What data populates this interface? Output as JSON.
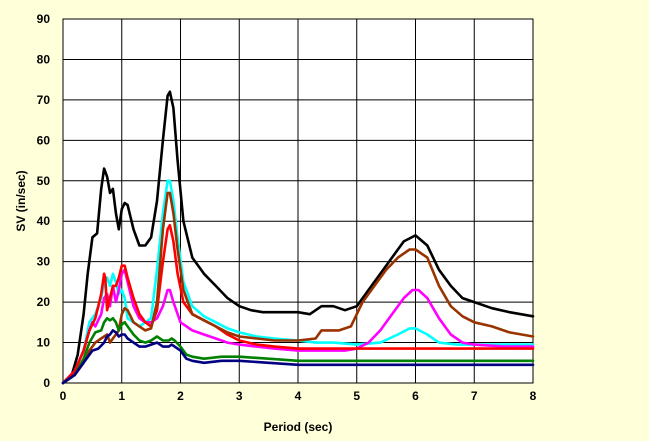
{
  "chart_data": {
    "type": "line",
    "title": "",
    "xlabel": "Period (sec)",
    "ylabel": "SV (in/sec)",
    "xlim": [
      0,
      8
    ],
    "ylim": [
      0,
      90
    ],
    "xticks": [
      0,
      1,
      2,
      3,
      4,
      5,
      6,
      7,
      8
    ],
    "yticks": [
      0,
      10,
      20,
      30,
      40,
      50,
      60,
      70,
      80,
      90
    ],
    "grid": true,
    "legend": "none",
    "colors": {
      "background": "#FFFFD9",
      "plot_background": "#FFFFFF",
      "grid": "#000000"
    },
    "series": [
      {
        "color": "#000000",
        "points": [
          [
            0,
            0
          ],
          [
            0.15,
            2
          ],
          [
            0.25,
            7
          ],
          [
            0.35,
            17
          ],
          [
            0.42,
            27
          ],
          [
            0.5,
            36
          ],
          [
            0.58,
            37
          ],
          [
            0.65,
            48
          ],
          [
            0.7,
            53
          ],
          [
            0.75,
            51
          ],
          [
            0.8,
            47
          ],
          [
            0.85,
            48
          ],
          [
            0.9,
            42
          ],
          [
            0.95,
            38
          ],
          [
            1.0,
            43
          ],
          [
            1.05,
            44.5
          ],
          [
            1.1,
            44
          ],
          [
            1.2,
            38
          ],
          [
            1.3,
            34
          ],
          [
            1.4,
            34
          ],
          [
            1.5,
            36
          ],
          [
            1.6,
            45
          ],
          [
            1.7,
            60
          ],
          [
            1.78,
            71
          ],
          [
            1.82,
            72
          ],
          [
            1.88,
            68
          ],
          [
            1.95,
            55
          ],
          [
            2.05,
            40
          ],
          [
            2.2,
            31
          ],
          [
            2.4,
            27
          ],
          [
            2.6,
            24
          ],
          [
            2.8,
            21
          ],
          [
            3.0,
            19
          ],
          [
            3.2,
            18
          ],
          [
            3.4,
            17.5
          ],
          [
            3.6,
            17.5
          ],
          [
            3.8,
            17.5
          ],
          [
            4.0,
            17.5
          ],
          [
            4.2,
            17
          ],
          [
            4.4,
            19
          ],
          [
            4.6,
            19
          ],
          [
            4.8,
            18
          ],
          [
            5.0,
            19
          ],
          [
            5.2,
            23
          ],
          [
            5.4,
            27
          ],
          [
            5.6,
            31
          ],
          [
            5.8,
            35
          ],
          [
            6.0,
            36.5
          ],
          [
            6.2,
            34
          ],
          [
            6.4,
            28
          ],
          [
            6.6,
            24
          ],
          [
            6.8,
            21
          ],
          [
            7.0,
            20
          ],
          [
            7.3,
            18.5
          ],
          [
            7.6,
            17.5
          ],
          [
            8.0,
            16.5
          ]
        ]
      },
      {
        "color": "#00FFFF",
        "points": [
          [
            0,
            0
          ],
          [
            0.2,
            3
          ],
          [
            0.35,
            8
          ],
          [
            0.45,
            15
          ],
          [
            0.55,
            17
          ],
          [
            0.65,
            21
          ],
          [
            0.7,
            25
          ],
          [
            0.75,
            26
          ],
          [
            0.8,
            24
          ],
          [
            0.85,
            27
          ],
          [
            0.9,
            25
          ],
          [
            0.95,
            22
          ],
          [
            1.0,
            23
          ],
          [
            1.05,
            21
          ],
          [
            1.1,
            16
          ],
          [
            1.2,
            15
          ],
          [
            1.3,
            14
          ],
          [
            1.4,
            15
          ],
          [
            1.5,
            16
          ],
          [
            1.6,
            28
          ],
          [
            1.7,
            42
          ],
          [
            1.78,
            50
          ],
          [
            1.82,
            50
          ],
          [
            1.88,
            45
          ],
          [
            1.95,
            36
          ],
          [
            2.05,
            25
          ],
          [
            2.2,
            19
          ],
          [
            2.4,
            16.5
          ],
          [
            2.6,
            15
          ],
          [
            2.8,
            13.5
          ],
          [
            3.0,
            12.5
          ],
          [
            3.3,
            11.5
          ],
          [
            3.6,
            11
          ],
          [
            4.0,
            10.5
          ],
          [
            4.3,
            10
          ],
          [
            4.6,
            10
          ],
          [
            5.0,
            9.5
          ],
          [
            5.4,
            10
          ],
          [
            5.7,
            12
          ],
          [
            5.9,
            13.5
          ],
          [
            6.0,
            13.5
          ],
          [
            6.2,
            12
          ],
          [
            6.4,
            10
          ],
          [
            6.7,
            9.5
          ],
          [
            7.0,
            9.5
          ],
          [
            7.5,
            9.5
          ],
          [
            8.0,
            9.5
          ]
        ]
      },
      {
        "color": "#FF00FF",
        "points": [
          [
            0,
            0
          ],
          [
            0.2,
            3
          ],
          [
            0.35,
            8
          ],
          [
            0.45,
            13
          ],
          [
            0.5,
            15
          ],
          [
            0.55,
            14
          ],
          [
            0.65,
            17
          ],
          [
            0.7,
            21
          ],
          [
            0.75,
            22
          ],
          [
            0.8,
            19
          ],
          [
            0.85,
            24
          ],
          [
            0.9,
            20
          ],
          [
            0.95,
            23
          ],
          [
            1.0,
            27
          ],
          [
            1.05,
            28
          ],
          [
            1.1,
            25
          ],
          [
            1.2,
            19
          ],
          [
            1.3,
            16
          ],
          [
            1.4,
            15
          ],
          [
            1.5,
            15
          ],
          [
            1.6,
            16
          ],
          [
            1.7,
            19
          ],
          [
            1.78,
            23
          ],
          [
            1.82,
            23
          ],
          [
            1.88,
            20
          ],
          [
            2.0,
            15
          ],
          [
            2.2,
            13
          ],
          [
            2.4,
            12
          ],
          [
            2.6,
            11
          ],
          [
            2.8,
            10
          ],
          [
            3.0,
            9.5
          ],
          [
            3.3,
            9
          ],
          [
            3.6,
            8.5
          ],
          [
            4.0,
            8
          ],
          [
            4.4,
            8
          ],
          [
            4.8,
            8
          ],
          [
            5.0,
            8.5
          ],
          [
            5.2,
            10
          ],
          [
            5.4,
            13
          ],
          [
            5.6,
            17
          ],
          [
            5.8,
            21
          ],
          [
            5.95,
            23
          ],
          [
            6.05,
            23
          ],
          [
            6.2,
            21
          ],
          [
            6.4,
            16
          ],
          [
            6.6,
            12
          ],
          [
            6.8,
            10
          ],
          [
            7.0,
            9.5
          ],
          [
            7.5,
            9
          ],
          [
            8.0,
            9
          ]
        ]
      },
      {
        "color": "#FF0000",
        "points": [
          [
            0,
            0
          ],
          [
            0.2,
            3
          ],
          [
            0.35,
            8
          ],
          [
            0.45,
            13
          ],
          [
            0.55,
            16
          ],
          [
            0.6,
            19
          ],
          [
            0.65,
            22
          ],
          [
            0.7,
            27
          ],
          [
            0.72,
            26
          ],
          [
            0.75,
            18
          ],
          [
            0.8,
            21
          ],
          [
            0.85,
            24
          ],
          [
            0.9,
            24
          ],
          [
            0.95,
            26
          ],
          [
            1.0,
            29
          ],
          [
            1.05,
            29
          ],
          [
            1.1,
            26
          ],
          [
            1.2,
            21
          ],
          [
            1.3,
            17
          ],
          [
            1.4,
            15
          ],
          [
            1.5,
            14
          ],
          [
            1.6,
            18
          ],
          [
            1.7,
            30
          ],
          [
            1.78,
            38
          ],
          [
            1.82,
            39
          ],
          [
            1.88,
            35
          ],
          [
            1.95,
            27
          ],
          [
            2.05,
            20
          ],
          [
            2.2,
            17
          ],
          [
            2.4,
            15.5
          ],
          [
            2.6,
            14
          ],
          [
            2.8,
            12
          ],
          [
            3.0,
            10.5
          ],
          [
            3.3,
            9.5
          ],
          [
            3.6,
            9
          ],
          [
            4.0,
            8.5
          ],
          [
            4.5,
            8.5
          ],
          [
            5.0,
            8.5
          ],
          [
            5.5,
            8.5
          ],
          [
            6.0,
            8.5
          ],
          [
            6.5,
            8.5
          ],
          [
            7.0,
            8.5
          ],
          [
            7.5,
            8.5
          ],
          [
            8.0,
            8.5
          ]
        ]
      },
      {
        "color": "#993300",
        "points": [
          [
            0,
            0
          ],
          [
            0.2,
            2
          ],
          [
            0.35,
            5
          ],
          [
            0.45,
            8
          ],
          [
            0.55,
            10
          ],
          [
            0.65,
            11
          ],
          [
            0.75,
            12
          ],
          [
            0.8,
            10
          ],
          [
            0.85,
            11
          ],
          [
            0.9,
            12
          ],
          [
            0.95,
            13
          ],
          [
            1.0,
            17
          ],
          [
            1.05,
            18.5
          ],
          [
            1.1,
            18
          ],
          [
            1.2,
            15
          ],
          [
            1.3,
            14
          ],
          [
            1.4,
            13
          ],
          [
            1.5,
            13.5
          ],
          [
            1.6,
            20
          ],
          [
            1.7,
            38
          ],
          [
            1.78,
            47
          ],
          [
            1.82,
            47
          ],
          [
            1.88,
            42
          ],
          [
            1.95,
            33
          ],
          [
            2.05,
            23
          ],
          [
            2.2,
            17
          ],
          [
            2.4,
            15.5
          ],
          [
            2.6,
            14
          ],
          [
            2.8,
            12.5
          ],
          [
            3.0,
            11.5
          ],
          [
            3.3,
            11
          ],
          [
            3.6,
            10.5
          ],
          [
            4.0,
            10.5
          ],
          [
            4.3,
            11
          ],
          [
            4.4,
            13
          ],
          [
            4.7,
            13
          ],
          [
            4.9,
            14
          ],
          [
            5.1,
            20
          ],
          [
            5.3,
            24
          ],
          [
            5.5,
            28
          ],
          [
            5.7,
            31
          ],
          [
            5.9,
            33
          ],
          [
            6.0,
            33
          ],
          [
            6.2,
            31
          ],
          [
            6.4,
            24
          ],
          [
            6.6,
            19
          ],
          [
            6.8,
            16.5
          ],
          [
            7.0,
            15
          ],
          [
            7.3,
            14
          ],
          [
            7.6,
            12.5
          ],
          [
            8.0,
            11.5
          ]
        ]
      },
      {
        "color": "#008000",
        "points": [
          [
            0,
            0
          ],
          [
            0.2,
            2
          ],
          [
            0.35,
            6
          ],
          [
            0.45,
            10
          ],
          [
            0.55,
            12.5
          ],
          [
            0.65,
            13
          ],
          [
            0.7,
            15
          ],
          [
            0.75,
            16
          ],
          [
            0.8,
            15.5
          ],
          [
            0.85,
            16
          ],
          [
            0.9,
            15
          ],
          [
            0.95,
            13
          ],
          [
            1.0,
            14.5
          ],
          [
            1.05,
            15
          ],
          [
            1.1,
            14
          ],
          [
            1.2,
            12
          ],
          [
            1.3,
            10.5
          ],
          [
            1.4,
            10
          ],
          [
            1.5,
            10.5
          ],
          [
            1.6,
            11.5
          ],
          [
            1.7,
            10.5
          ],
          [
            1.8,
            10.5
          ],
          [
            1.85,
            11
          ],
          [
            1.9,
            10.5
          ],
          [
            2.0,
            9
          ],
          [
            2.1,
            7
          ],
          [
            2.2,
            6.5
          ],
          [
            2.4,
            6
          ],
          [
            2.7,
            6.5
          ],
          [
            3.0,
            6.5
          ],
          [
            3.5,
            6
          ],
          [
            4.0,
            5.5
          ],
          [
            4.5,
            5.5
          ],
          [
            5.0,
            5.5
          ],
          [
            5.5,
            5.5
          ],
          [
            6.0,
            5.5
          ],
          [
            6.5,
            5.5
          ],
          [
            7.0,
            5.5
          ],
          [
            7.5,
            5.5
          ],
          [
            8.0,
            5.5
          ]
        ]
      },
      {
        "color": "#000080",
        "points": [
          [
            0,
            0
          ],
          [
            0.2,
            2
          ],
          [
            0.3,
            4
          ],
          [
            0.4,
            6
          ],
          [
            0.5,
            8
          ],
          [
            0.6,
            8.5
          ],
          [
            0.7,
            10
          ],
          [
            0.75,
            11.5
          ],
          [
            0.8,
            12
          ],
          [
            0.85,
            13
          ],
          [
            0.9,
            12.5
          ],
          [
            0.95,
            11.5
          ],
          [
            1.0,
            12
          ],
          [
            1.05,
            12
          ],
          [
            1.1,
            11
          ],
          [
            1.2,
            10
          ],
          [
            1.3,
            9
          ],
          [
            1.4,
            9
          ],
          [
            1.5,
            9.5
          ],
          [
            1.6,
            10
          ],
          [
            1.7,
            9
          ],
          [
            1.8,
            9
          ],
          [
            1.85,
            9.5
          ],
          [
            1.9,
            9
          ],
          [
            2.0,
            8
          ],
          [
            2.1,
            6
          ],
          [
            2.2,
            5.5
          ],
          [
            2.4,
            5
          ],
          [
            2.7,
            5.5
          ],
          [
            3.0,
            5.5
          ],
          [
            3.5,
            5
          ],
          [
            4.0,
            4.5
          ],
          [
            4.5,
            4.5
          ],
          [
            5.0,
            4.5
          ],
          [
            5.5,
            4.5
          ],
          [
            6.0,
            4.5
          ],
          [
            6.5,
            4.5
          ],
          [
            7.0,
            4.5
          ],
          [
            7.5,
            4.5
          ],
          [
            8.0,
            4.5
          ]
        ]
      }
    ]
  }
}
